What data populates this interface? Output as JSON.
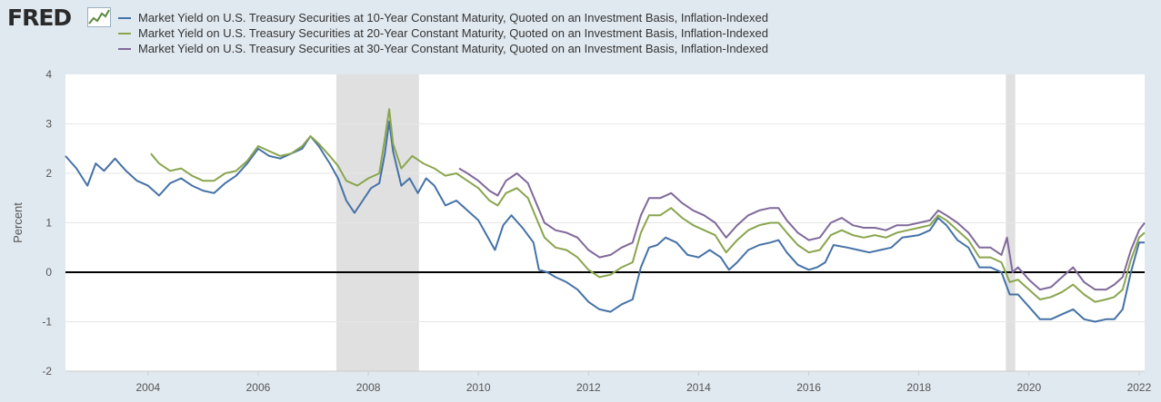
{
  "logo": {
    "text": "FRED",
    "icon": "chart-line-icon"
  },
  "chart_data": {
    "type": "line",
    "ylabel": "Percent",
    "ylim": [
      -2,
      4
    ],
    "xlim": [
      2003.0,
      2022.6
    ],
    "yticks": [
      4,
      3,
      2,
      1,
      0,
      -1,
      -2
    ],
    "xticks": [
      "2004",
      "2006",
      "2008",
      "2010",
      "2012",
      "2014",
      "2016",
      "2018",
      "2020",
      "2022"
    ],
    "zero_line": 0,
    "grid": "horizontal",
    "legend_placement": "top-left",
    "recessions": [
      [
        2007.92,
        2009.42
      ],
      [
        2020.08,
        2020.25
      ]
    ],
    "series": [
      {
        "name": "Market Yield on U.S. Treasury Securities at 10-Year Constant Maturity, Quoted on an Investment Basis, Inflation-Indexed",
        "color": "#4572a7",
        "points": [
          [
            2003.0,
            2.35
          ],
          [
            2003.2,
            2.1
          ],
          [
            2003.4,
            1.75
          ],
          [
            2003.55,
            2.2
          ],
          [
            2003.7,
            2.05
          ],
          [
            2003.9,
            2.3
          ],
          [
            2004.1,
            2.05
          ],
          [
            2004.3,
            1.85
          ],
          [
            2004.5,
            1.75
          ],
          [
            2004.7,
            1.55
          ],
          [
            2004.9,
            1.8
          ],
          [
            2005.1,
            1.9
          ],
          [
            2005.3,
            1.75
          ],
          [
            2005.5,
            1.65
          ],
          [
            2005.7,
            1.6
          ],
          [
            2005.9,
            1.8
          ],
          [
            2006.1,
            1.95
          ],
          [
            2006.3,
            2.2
          ],
          [
            2006.5,
            2.5
          ],
          [
            2006.7,
            2.35
          ],
          [
            2006.9,
            2.3
          ],
          [
            2007.1,
            2.4
          ],
          [
            2007.3,
            2.5
          ],
          [
            2007.45,
            2.75
          ],
          [
            2007.6,
            2.55
          ],
          [
            2007.8,
            2.2
          ],
          [
            2007.95,
            1.9
          ],
          [
            2008.1,
            1.45
          ],
          [
            2008.25,
            1.2
          ],
          [
            2008.4,
            1.45
          ],
          [
            2008.55,
            1.7
          ],
          [
            2008.7,
            1.8
          ],
          [
            2008.8,
            2.4
          ],
          [
            2008.88,
            3.05
          ],
          [
            2008.95,
            2.45
          ],
          [
            2009.1,
            1.75
          ],
          [
            2009.25,
            1.9
          ],
          [
            2009.4,
            1.6
          ],
          [
            2009.55,
            1.9
          ],
          [
            2009.7,
            1.75
          ],
          [
            2009.9,
            1.35
          ],
          [
            2010.1,
            1.45
          ],
          [
            2010.3,
            1.25
          ],
          [
            2010.5,
            1.05
          ],
          [
            2010.65,
            0.75
          ],
          [
            2010.8,
            0.45
          ],
          [
            2010.95,
            0.95
          ],
          [
            2011.1,
            1.15
          ],
          [
            2011.3,
            0.9
          ],
          [
            2011.5,
            0.6
          ],
          [
            2011.6,
            0.05
          ],
          [
            2011.75,
            0.0
          ],
          [
            2011.9,
            -0.1
          ],
          [
            2012.1,
            -0.2
          ],
          [
            2012.3,
            -0.35
          ],
          [
            2012.5,
            -0.6
          ],
          [
            2012.7,
            -0.75
          ],
          [
            2012.9,
            -0.8
          ],
          [
            2013.1,
            -0.65
          ],
          [
            2013.3,
            -0.55
          ],
          [
            2013.45,
            0.1
          ],
          [
            2013.6,
            0.5
          ],
          [
            2013.75,
            0.55
          ],
          [
            2013.9,
            0.7
          ],
          [
            2014.1,
            0.6
          ],
          [
            2014.3,
            0.35
          ],
          [
            2014.5,
            0.3
          ],
          [
            2014.7,
            0.45
          ],
          [
            2014.9,
            0.3
          ],
          [
            2015.05,
            0.05
          ],
          [
            2015.2,
            0.2
          ],
          [
            2015.4,
            0.45
          ],
          [
            2015.6,
            0.55
          ],
          [
            2015.8,
            0.6
          ],
          [
            2015.95,
            0.65
          ],
          [
            2016.1,
            0.4
          ],
          [
            2016.3,
            0.15
          ],
          [
            2016.5,
            0.05
          ],
          [
            2016.65,
            0.1
          ],
          [
            2016.8,
            0.2
          ],
          [
            2016.95,
            0.55
          ],
          [
            2017.2,
            0.5
          ],
          [
            2017.4,
            0.45
          ],
          [
            2017.6,
            0.4
          ],
          [
            2017.8,
            0.45
          ],
          [
            2018.0,
            0.5
          ],
          [
            2018.2,
            0.7
          ],
          [
            2018.5,
            0.75
          ],
          [
            2018.7,
            0.85
          ],
          [
            2018.85,
            1.1
          ],
          [
            2019.0,
            0.95
          ],
          [
            2019.2,
            0.65
          ],
          [
            2019.4,
            0.5
          ],
          [
            2019.6,
            0.1
          ],
          [
            2019.8,
            0.1
          ],
          [
            2020.0,
            0.0
          ],
          [
            2020.15,
            -0.45
          ],
          [
            2020.3,
            -0.45
          ],
          [
            2020.5,
            -0.7
          ],
          [
            2020.7,
            -0.95
          ],
          [
            2020.9,
            -0.95
          ],
          [
            2021.1,
            -0.85
          ],
          [
            2021.3,
            -0.75
          ],
          [
            2021.5,
            -0.95
          ],
          [
            2021.7,
            -1.0
          ],
          [
            2021.9,
            -0.95
          ],
          [
            2022.05,
            -0.95
          ],
          [
            2022.2,
            -0.75
          ],
          [
            2022.35,
            0.0
          ],
          [
            2022.5,
            0.6
          ],
          [
            2022.6,
            0.6
          ]
        ]
      },
      {
        "name": "Market Yield on U.S. Treasury Securities at 20-Year Constant Maturity, Quoted on an Investment Basis, Inflation-Indexed",
        "color": "#89a54e",
        "points": [
          [
            2004.55,
            2.4
          ],
          [
            2004.7,
            2.2
          ],
          [
            2004.9,
            2.05
          ],
          [
            2005.1,
            2.1
          ],
          [
            2005.3,
            1.95
          ],
          [
            2005.5,
            1.85
          ],
          [
            2005.7,
            1.85
          ],
          [
            2005.9,
            2.0
          ],
          [
            2006.1,
            2.05
          ],
          [
            2006.3,
            2.25
          ],
          [
            2006.5,
            2.55
          ],
          [
            2006.7,
            2.45
          ],
          [
            2006.9,
            2.35
          ],
          [
            2007.1,
            2.4
          ],
          [
            2007.3,
            2.55
          ],
          [
            2007.45,
            2.75
          ],
          [
            2007.6,
            2.6
          ],
          [
            2007.8,
            2.35
          ],
          [
            2007.95,
            2.15
          ],
          [
            2008.1,
            1.85
          ],
          [
            2008.3,
            1.75
          ],
          [
            2008.5,
            1.9
          ],
          [
            2008.7,
            2.0
          ],
          [
            2008.8,
            2.7
          ],
          [
            2008.88,
            3.3
          ],
          [
            2008.95,
            2.6
          ],
          [
            2009.1,
            2.1
          ],
          [
            2009.3,
            2.35
          ],
          [
            2009.5,
            2.2
          ],
          [
            2009.7,
            2.1
          ],
          [
            2009.9,
            1.95
          ],
          [
            2010.1,
            2.0
          ],
          [
            2010.3,
            1.85
          ],
          [
            2010.5,
            1.7
          ],
          [
            2010.7,
            1.45
          ],
          [
            2010.85,
            1.35
          ],
          [
            2011.0,
            1.6
          ],
          [
            2011.2,
            1.7
          ],
          [
            2011.4,
            1.5
          ],
          [
            2011.55,
            1.1
          ],
          [
            2011.7,
            0.7
          ],
          [
            2011.9,
            0.5
          ],
          [
            2012.1,
            0.45
          ],
          [
            2012.3,
            0.3
          ],
          [
            2012.5,
            0.05
          ],
          [
            2012.7,
            -0.1
          ],
          [
            2012.9,
            -0.05
          ],
          [
            2013.1,
            0.1
          ],
          [
            2013.3,
            0.2
          ],
          [
            2013.45,
            0.8
          ],
          [
            2013.6,
            1.15
          ],
          [
            2013.8,
            1.15
          ],
          [
            2014.0,
            1.3
          ],
          [
            2014.2,
            1.1
          ],
          [
            2014.4,
            0.95
          ],
          [
            2014.6,
            0.85
          ],
          [
            2014.8,
            0.75
          ],
          [
            2015.0,
            0.4
          ],
          [
            2015.2,
            0.65
          ],
          [
            2015.4,
            0.85
          ],
          [
            2015.6,
            0.95
          ],
          [
            2015.8,
            1.0
          ],
          [
            2015.95,
            1.0
          ],
          [
            2016.1,
            0.8
          ],
          [
            2016.3,
            0.55
          ],
          [
            2016.5,
            0.4
          ],
          [
            2016.7,
            0.45
          ],
          [
            2016.9,
            0.75
          ],
          [
            2017.1,
            0.85
          ],
          [
            2017.3,
            0.75
          ],
          [
            2017.5,
            0.7
          ],
          [
            2017.7,
            0.75
          ],
          [
            2017.9,
            0.7
          ],
          [
            2018.1,
            0.8
          ],
          [
            2018.3,
            0.85
          ],
          [
            2018.5,
            0.9
          ],
          [
            2018.7,
            0.95
          ],
          [
            2018.85,
            1.15
          ],
          [
            2019.0,
            1.05
          ],
          [
            2019.2,
            0.85
          ],
          [
            2019.4,
            0.65
          ],
          [
            2019.6,
            0.3
          ],
          [
            2019.8,
            0.3
          ],
          [
            2020.0,
            0.2
          ],
          [
            2020.15,
            -0.2
          ],
          [
            2020.3,
            -0.15
          ],
          [
            2020.5,
            -0.35
          ],
          [
            2020.7,
            -0.55
          ],
          [
            2020.9,
            -0.5
          ],
          [
            2021.1,
            -0.4
          ],
          [
            2021.3,
            -0.25
          ],
          [
            2021.5,
            -0.45
          ],
          [
            2021.7,
            -0.6
          ],
          [
            2021.9,
            -0.55
          ],
          [
            2022.05,
            -0.5
          ],
          [
            2022.2,
            -0.35
          ],
          [
            2022.35,
            0.25
          ],
          [
            2022.5,
            0.7
          ],
          [
            2022.6,
            0.8
          ]
        ]
      },
      {
        "name": "Market Yield on U.S. Treasury Securities at 30-Year Constant Maturity, Quoted on an Investment Basis, Inflation-Indexed",
        "color": "#80699b",
        "points": [
          [
            2010.15,
            2.1
          ],
          [
            2010.3,
            2.0
          ],
          [
            2010.5,
            1.85
          ],
          [
            2010.7,
            1.65
          ],
          [
            2010.85,
            1.55
          ],
          [
            2011.0,
            1.85
          ],
          [
            2011.2,
            2.0
          ],
          [
            2011.4,
            1.8
          ],
          [
            2011.55,
            1.4
          ],
          [
            2011.7,
            1.0
          ],
          [
            2011.9,
            0.85
          ],
          [
            2012.1,
            0.8
          ],
          [
            2012.3,
            0.7
          ],
          [
            2012.5,
            0.45
          ],
          [
            2012.7,
            0.3
          ],
          [
            2012.9,
            0.35
          ],
          [
            2013.1,
            0.5
          ],
          [
            2013.3,
            0.6
          ],
          [
            2013.45,
            1.15
          ],
          [
            2013.6,
            1.5
          ],
          [
            2013.8,
            1.5
          ],
          [
            2014.0,
            1.6
          ],
          [
            2014.2,
            1.4
          ],
          [
            2014.4,
            1.25
          ],
          [
            2014.6,
            1.15
          ],
          [
            2014.8,
            1.0
          ],
          [
            2015.0,
            0.7
          ],
          [
            2015.2,
            0.95
          ],
          [
            2015.4,
            1.15
          ],
          [
            2015.6,
            1.25
          ],
          [
            2015.8,
            1.3
          ],
          [
            2015.95,
            1.3
          ],
          [
            2016.1,
            1.05
          ],
          [
            2016.3,
            0.8
          ],
          [
            2016.5,
            0.65
          ],
          [
            2016.7,
            0.7
          ],
          [
            2016.9,
            1.0
          ],
          [
            2017.1,
            1.1
          ],
          [
            2017.3,
            0.95
          ],
          [
            2017.5,
            0.9
          ],
          [
            2017.7,
            0.9
          ],
          [
            2017.9,
            0.85
          ],
          [
            2018.1,
            0.95
          ],
          [
            2018.3,
            0.95
          ],
          [
            2018.5,
            1.0
          ],
          [
            2018.7,
            1.05
          ],
          [
            2018.85,
            1.25
          ],
          [
            2019.0,
            1.15
          ],
          [
            2019.2,
            1.0
          ],
          [
            2019.4,
            0.8
          ],
          [
            2019.6,
            0.5
          ],
          [
            2019.8,
            0.5
          ],
          [
            2020.0,
            0.35
          ],
          [
            2020.1,
            0.7
          ],
          [
            2020.2,
            0.0
          ],
          [
            2020.3,
            0.1
          ],
          [
            2020.5,
            -0.15
          ],
          [
            2020.7,
            -0.35
          ],
          [
            2020.9,
            -0.3
          ],
          [
            2021.1,
            -0.1
          ],
          [
            2021.3,
            0.1
          ],
          [
            2021.5,
            -0.2
          ],
          [
            2021.7,
            -0.35
          ],
          [
            2021.9,
            -0.35
          ],
          [
            2022.05,
            -0.25
          ],
          [
            2022.2,
            -0.1
          ],
          [
            2022.35,
            0.45
          ],
          [
            2022.5,
            0.85
          ],
          [
            2022.6,
            1.0
          ]
        ]
      }
    ]
  }
}
